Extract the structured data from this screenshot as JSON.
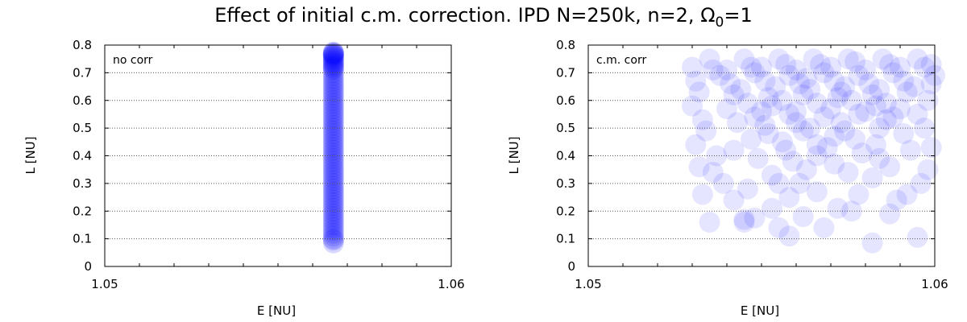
{
  "figure": {
    "title": "Effect of initial c.m. correction. IPD N=250k, n=2, Ω",
    "title_sub": "0",
    "title_tail": "=1"
  },
  "colors": {
    "point": "#0000ff",
    "frame": "#000000",
    "grid": "#555555"
  },
  "chart_data": [
    {
      "type": "scatter",
      "annotation": "no corr",
      "xlabel": "E [NU]",
      "ylabel": "L [NU]",
      "xlim": [
        1.05,
        1.06
      ],
      "ylim": [
        0,
        0.8
      ],
      "xticks": [
        "1.05",
        "1.06"
      ],
      "yticks": [
        "0",
        "0.1",
        "0.2",
        "0.3",
        "0.4",
        "0.5",
        "0.6",
        "0.7",
        "0.8"
      ],
      "grid": "horizontal dotted",
      "point_alpha": 0.15,
      "points": [
        [
          1.0566,
          0.085
        ],
        [
          1.0566,
          0.1
        ],
        [
          1.0566,
          0.12
        ],
        [
          1.0566,
          0.14
        ],
        [
          1.0566,
          0.16
        ],
        [
          1.0566,
          0.18
        ],
        [
          1.0566,
          0.2
        ],
        [
          1.0566,
          0.22
        ],
        [
          1.0566,
          0.24
        ],
        [
          1.0566,
          0.26
        ],
        [
          1.0566,
          0.27
        ],
        [
          1.0566,
          0.29
        ],
        [
          1.0566,
          0.31
        ],
        [
          1.0566,
          0.33
        ],
        [
          1.0566,
          0.35
        ],
        [
          1.0566,
          0.37
        ],
        [
          1.0566,
          0.39
        ],
        [
          1.0566,
          0.41
        ],
        [
          1.0566,
          0.43
        ],
        [
          1.0566,
          0.45
        ],
        [
          1.0566,
          0.47
        ],
        [
          1.0566,
          0.49
        ],
        [
          1.0566,
          0.51
        ],
        [
          1.0566,
          0.53
        ],
        [
          1.0566,
          0.55
        ],
        [
          1.0566,
          0.57
        ],
        [
          1.0566,
          0.59
        ],
        [
          1.0566,
          0.61
        ],
        [
          1.0566,
          0.63
        ],
        [
          1.0566,
          0.65
        ],
        [
          1.0566,
          0.67
        ],
        [
          1.0566,
          0.69
        ],
        [
          1.0566,
          0.71
        ],
        [
          1.0566,
          0.72
        ],
        [
          1.0566,
          0.73
        ],
        [
          1.0566,
          0.74
        ],
        [
          1.0566,
          0.75
        ],
        [
          1.0566,
          0.76
        ],
        [
          1.0566,
          0.765
        ],
        [
          1.0566,
          0.77
        ],
        [
          1.0566,
          0.3
        ],
        [
          1.0566,
          0.32
        ],
        [
          1.0566,
          0.34
        ],
        [
          1.0566,
          0.36
        ],
        [
          1.0566,
          0.38
        ],
        [
          1.0566,
          0.4
        ],
        [
          1.0566,
          0.42
        ],
        [
          1.0566,
          0.44
        ],
        [
          1.0566,
          0.46
        ],
        [
          1.0566,
          0.48
        ],
        [
          1.0566,
          0.5
        ],
        [
          1.0566,
          0.52
        ],
        [
          1.0566,
          0.54
        ],
        [
          1.0566,
          0.56
        ],
        [
          1.0566,
          0.58
        ],
        [
          1.0566,
          0.6
        ],
        [
          1.0566,
          0.62
        ],
        [
          1.0566,
          0.64
        ],
        [
          1.0566,
          0.66
        ],
        [
          1.0566,
          0.68
        ],
        [
          1.0566,
          0.7
        ],
        [
          1.0566,
          0.715
        ],
        [
          1.0566,
          0.725
        ],
        [
          1.0566,
          0.735
        ],
        [
          1.0566,
          0.745
        ],
        [
          1.0566,
          0.755
        ],
        [
          1.0566,
          0.762
        ],
        [
          1.0566,
          0.768
        ],
        [
          1.0566,
          0.772
        ],
        [
          1.0566,
          0.775
        ],
        [
          1.0566,
          0.28
        ],
        [
          1.0566,
          0.25
        ],
        [
          1.0566,
          0.23
        ],
        [
          1.0566,
          0.21
        ],
        [
          1.0566,
          0.19
        ],
        [
          1.0566,
          0.17
        ],
        [
          1.0566,
          0.15
        ],
        [
          1.0566,
          0.13
        ],
        [
          1.0566,
          0.11
        ],
        [
          1.0566,
          0.095
        ]
      ]
    },
    {
      "type": "scatter",
      "annotation": "c.m. corr",
      "xlabel": "E [NU]",
      "ylabel": "L [NU]",
      "xlim": [
        1.05,
        1.06
      ],
      "ylim": [
        0,
        0.8
      ],
      "xticks": [
        "1.05",
        "1.06"
      ],
      "yticks": [
        "0",
        "0.1",
        "0.2",
        "0.3",
        "0.4",
        "0.5",
        "0.6",
        "0.7",
        "0.8"
      ],
      "grid": "horizontal dotted",
      "point_alpha": 0.1,
      "points": [
        [
          1.0535,
          0.16
        ],
        [
          1.0545,
          0.17
        ],
        [
          1.0548,
          0.175
        ],
        [
          1.0545,
          0.16
        ],
        [
          1.0558,
          0.11
        ],
        [
          1.0582,
          0.085
        ],
        [
          1.0595,
          0.105
        ],
        [
          1.0555,
          0.14
        ],
        [
          1.0568,
          0.14
        ],
        [
          1.0587,
          0.19
        ],
        [
          1.0572,
          0.21
        ],
        [
          1.0553,
          0.21
        ],
        [
          1.0542,
          0.24
        ],
        [
          1.0558,
          0.25
        ],
        [
          1.0562,
          0.18
        ],
        [
          1.0576,
          0.2
        ],
        [
          1.0539,
          0.3
        ],
        [
          1.0546,
          0.28
        ],
        [
          1.0566,
          0.27
        ],
        [
          1.0578,
          0.26
        ],
        [
          1.0589,
          0.24
        ],
        [
          1.0596,
          0.3
        ],
        [
          1.0536,
          0.34
        ],
        [
          1.0532,
          0.36
        ],
        [
          1.0553,
          0.33
        ],
        [
          1.0561,
          0.3
        ],
        [
          1.0582,
          0.32
        ],
        [
          1.0598,
          0.35
        ],
        [
          1.0531,
          0.44
        ],
        [
          1.0542,
          0.42
        ],
        [
          1.0559,
          0.38
        ],
        [
          1.0571,
          0.37
        ],
        [
          1.0584,
          0.39
        ],
        [
          1.0593,
          0.42
        ],
        [
          1.0534,
          0.49
        ],
        [
          1.0547,
          0.46
        ],
        [
          1.0556,
          0.45
        ],
        [
          1.0566,
          0.44
        ],
        [
          1.0577,
          0.46
        ],
        [
          1.0591,
          0.48
        ],
        [
          1.0597,
          0.5
        ],
        [
          1.0533,
          0.53
        ],
        [
          1.0543,
          0.52
        ],
        [
          1.0551,
          0.51
        ],
        [
          1.0562,
          0.49
        ],
        [
          1.0573,
          0.52
        ],
        [
          1.0586,
          0.53
        ],
        [
          1.0595,
          0.55
        ],
        [
          1.053,
          0.58
        ],
        [
          1.054,
          0.57
        ],
        [
          1.055,
          0.56
        ],
        [
          1.056,
          0.56
        ],
        [
          1.057,
          0.57
        ],
        [
          1.058,
          0.56
        ],
        [
          1.059,
          0.57
        ],
        [
          1.0598,
          0.6
        ],
        [
          1.0532,
          0.63
        ],
        [
          1.0542,
          0.62
        ],
        [
          1.0552,
          0.61
        ],
        [
          1.0562,
          0.62
        ],
        [
          1.0572,
          0.61
        ],
        [
          1.0582,
          0.62
        ],
        [
          1.0592,
          0.63
        ],
        [
          1.0599,
          0.66
        ],
        [
          1.0531,
          0.67
        ],
        [
          1.0541,
          0.66
        ],
        [
          1.0551,
          0.67
        ],
        [
          1.0561,
          0.66
        ],
        [
          1.0571,
          0.67
        ],
        [
          1.0581,
          0.66
        ],
        [
          1.0591,
          0.67
        ],
        [
          1.06,
          0.69
        ],
        [
          1.053,
          0.72
        ],
        [
          1.054,
          0.71
        ],
        [
          1.055,
          0.72
        ],
        [
          1.056,
          0.71
        ],
        [
          1.057,
          0.72
        ],
        [
          1.058,
          0.71
        ],
        [
          1.059,
          0.72
        ],
        [
          1.0599,
          0.73
        ],
        [
          1.0535,
          0.75
        ],
        [
          1.0545,
          0.75
        ],
        [
          1.0555,
          0.75
        ],
        [
          1.0565,
          0.75
        ],
        [
          1.0575,
          0.75
        ],
        [
          1.0585,
          0.75
        ],
        [
          1.0595,
          0.75
        ],
        [
          1.0538,
          0.69
        ],
        [
          1.0548,
          0.7
        ],
        [
          1.0558,
          0.69
        ],
        [
          1.0568,
          0.7
        ],
        [
          1.0578,
          0.69
        ],
        [
          1.0588,
          0.7
        ],
        [
          1.0544,
          0.64
        ],
        [
          1.0554,
          0.65
        ],
        [
          1.0564,
          0.64
        ],
        [
          1.0574,
          0.65
        ],
        [
          1.0584,
          0.64
        ],
        [
          1.0594,
          0.65
        ],
        [
          1.0546,
          0.59
        ],
        [
          1.0556,
          0.6
        ],
        [
          1.0566,
          0.59
        ],
        [
          1.0576,
          0.6
        ],
        [
          1.0586,
          0.59
        ],
        [
          1.0548,
          0.54
        ],
        [
          1.0558,
          0.55
        ],
        [
          1.0568,
          0.54
        ],
        [
          1.0578,
          0.55
        ],
        [
          1.0588,
          0.54
        ],
        [
          1.0552,
          0.48
        ],
        [
          1.0564,
          0.5
        ],
        [
          1.0574,
          0.49
        ],
        [
          1.0584,
          0.5
        ],
        [
          1.0557,
          0.42
        ],
        [
          1.0569,
          0.43
        ],
        [
          1.0579,
          0.41
        ],
        [
          1.0563,
          0.35
        ],
        [
          1.0575,
          0.34
        ],
        [
          1.0587,
          0.36
        ],
        [
          1.0549,
          0.39
        ],
        [
          1.0537,
          0.4
        ],
        [
          1.0533,
          0.26
        ],
        [
          1.0599,
          0.43
        ],
        [
          1.0592,
          0.26
        ],
        [
          1.0583,
          0.44
        ],
        [
          1.0547,
          0.72
        ],
        [
          1.0557,
          0.73
        ],
        [
          1.0567,
          0.73
        ],
        [
          1.0577,
          0.74
        ],
        [
          1.0587,
          0.73
        ],
        [
          1.0597,
          0.72
        ],
        [
          1.0536,
          0.71
        ],
        [
          1.0563,
          0.68
        ],
        [
          1.0573,
          0.63
        ],
        [
          1.0553,
          0.58
        ],
        [
          1.0583,
          0.58
        ],
        [
          1.056,
          0.52
        ],
        [
          1.0571,
          0.47
        ],
        [
          1.0566,
          0.4
        ],
        [
          1.0555,
          0.3
        ]
      ]
    }
  ]
}
